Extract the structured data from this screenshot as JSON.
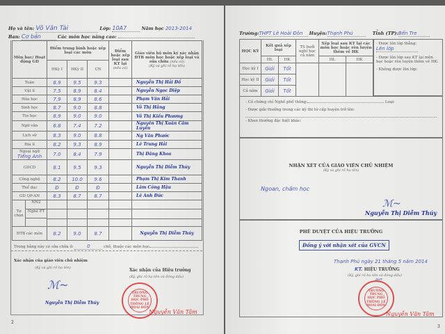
{
  "left_page": {
    "name_label": "Họ và tên:",
    "name_value": "Võ Văn Tài",
    "class_label": "Lớp:",
    "class_value": "10A7",
    "year_label": "Năm học",
    "year_value": "2013-2014",
    "ban_label": "Ban:",
    "ban_value": "Cơ bản",
    "advanced_label": "Các môn học nâng cao:",
    "headers": {
      "subject": "Môn học/ Hoạt động GD",
      "avg": "Điểm trung bình hoặc xếp loại các môn",
      "hk1": "HKỳ I",
      "hk2": "HKỳ II",
      "cn": "CN",
      "retest": "Điểm hoặc xếp loại sau KT lại",
      "retest_note": "(nếu có)",
      "teacher": "Giáo viên bộ môn ký xác nhận ĐTB môn học hoặc xếp loại và sửa chữa",
      "teacher_note1": "(nếu có)",
      "teacher_note2": "(Ký và ghi rõ họ tên)"
    },
    "rows": [
      {
        "subject": "Toán",
        "hk1": "8.9",
        "hk2": "9.5",
        "cn": "9.3",
        "teacher": "Nguyễn Thị Hải Đồ"
      },
      {
        "subject": "Vật lí",
        "hk1": "7.5",
        "hk2": "8.9",
        "cn": "8.4",
        "teacher": "Nguyễn Ngọc Diệp"
      },
      {
        "subject": "Hóa học",
        "hk1": "7.9",
        "hk2": "8.9",
        "cn": "8.6",
        "teacher": "Phạm Văn Hải"
      },
      {
        "subject": "Sinh học",
        "hk1": "8.7",
        "hk2": "9.0",
        "cn": "8.8",
        "teacher": "Võ Thị Hằng"
      },
      {
        "subject": "Tin học",
        "hk1": "8.9",
        "hk2": "9.0",
        "cn": "9.0",
        "teacher": "Võ Thị Kiều Phương"
      },
      {
        "subject": "Ngữ văn",
        "hk1": "6.8",
        "hk2": "7.4",
        "cn": "7.2",
        "teacher": "Nguyễn Thị Xuân Cẩm Luyến"
      },
      {
        "subject": "Lịch sử",
        "hk1": "8.3",
        "hk2": "9.0",
        "cn": "8.8",
        "teacher": "Ng Văn Phước"
      },
      {
        "subject": "Địa lí",
        "hk1": "8.2",
        "hk2": "9.3",
        "cn": "8.9",
        "teacher": "Lê Trung Hải"
      },
      {
        "subject": "Ngoại ngữ",
        "subject_note": "Tiếng Anh",
        "hk1": "7.0",
        "hk2": "8.4",
        "cn": "7.9",
        "teacher": "Thị Đăng Khoa"
      },
      {
        "subject": "GDCD",
        "hk1": "8.1",
        "hk2": "9.5",
        "cn": "9.3",
        "teacher": "Nguyễn Thị Diễm Thúy"
      },
      {
        "subject": "Công nghệ",
        "hk1": "8.2",
        "hk2": "10.0",
        "cn": "9.6",
        "teacher": "Phạm Thị Kim Thanh"
      },
      {
        "subject": "Thể dục",
        "hk1": "Đ",
        "hk2": "Đ",
        "cn": "Đ",
        "teacher": "Lâm Công Hậu"
      },
      {
        "subject": "GD QP-AN",
        "hk1": "8.3",
        "hk2": "8.7",
        "cn": "8.7",
        "teacher": "Lê Anh Đức"
      }
    ],
    "elective_label": "Tự chọn",
    "nn2": "NN2",
    "nghe": "Nghề PT",
    "avg_row": {
      "subject": "ĐTB các môn",
      "hk1": "8.2",
      "hk2": "9.0",
      "cn": "8.7",
      "teacher": "Nguyễn Thị Diễm Thúy"
    },
    "correction_prefix": "Trong bảng này có sửa chữa ở:",
    "correction_count": "0",
    "correction_suffix": "chỗ, thuộc các môn học",
    "homeroom_confirm": "Xác nhận của giáo viên chủ nhiệm",
    "homeroom_note": "(Ký và ghi rõ họ tên)",
    "homeroom_name": "Nguyễn Thị Diễm Thúy",
    "principal_confirm": "Xác nhận của Hiệu trưởng",
    "principal_note": "(Ký, ghi rõ họ tên và đóng dấu)",
    "principal_name": "Nguyễn Văn Tâm",
    "stamp_text": "TRƯỜNG TRUNG HỌC PHỔ THÔNG LÊ HOÀI ĐÔN",
    "page_number": "2"
  },
  "right_page": {
    "school_label": "Trường:",
    "school_value": "THPT Lê Hoài Đôn",
    "district_label": "Huyện:",
    "district_value": "Thạnh Phú",
    "province_label": "Tỉnh (TP):",
    "province_value": "Bến Tre",
    "headers": {
      "term": "HỌC KỲ",
      "result": "Kết quả xếp loại",
      "hl": "HL",
      "hk": "HK",
      "absent": "TS buổi nghỉ học cả năm",
      "after": "Xếp loại sau KT lại các môn học hoặc rèn luyện thêm về HK"
    },
    "rows": [
      {
        "term": "Học kỳ I",
        "hl": "Giỏi",
        "hk": "Tốt"
      },
      {
        "term": "Học kỳ II",
        "hl": "Giỏi",
        "hk": "Tốt"
      },
      {
        "term": "Cả năm",
        "hl": "Giỏi",
        "hk": "Tốt"
      }
    ],
    "promote_label": "- Được lên lớp thẳng:",
    "promote_value": "Lên lớp",
    "promote_after_label": "- Được lên lớp sau KT lại môn học hoặc rèn luyện thêm về HK:",
    "not_promote_label": "- Không được lên lớp:",
    "cert_label": "- Có chứng chỉ Nghề phổ thông:",
    "cert_type_label": "Loại:",
    "award_label": "- Được giải thưởng trong các kỳ thi từ cấp huyện trở lên:",
    "other_award_label": "- Khen thưởng đặc biệt khác:",
    "comment_title": "NHẬN XÉT CỦA GIÁO VIÊN CHỦ NHIỆM",
    "comment_note": "(Ký và ghi rõ họ tên)",
    "comment_value": "Ngoan, chăm học",
    "comment_signer": "Nguyễn Thị Diễm Thúy",
    "approval_title": "PHÊ DUYỆT CỦA HIỆU TRƯỞNG",
    "approval_stamp": "Đồng ý với nhận xét của GVCN",
    "date_line": "Thạnh Phú ngày 21 tháng 5 năm 2014",
    "kt_prefix": "KT.",
    "principal_title": "HIỆU TRƯỞNG",
    "principal_note": "(Ký, ghi rõ họ tên và đóng dấu)",
    "pht": "PHT",
    "principal_name": "Nguyễn Văn Tâm",
    "stamp_text": "TRƯỜNG TRUNG HỌC PHỔ THÔNG LÊ HOÀI ĐÔN",
    "page_number": "3"
  }
}
